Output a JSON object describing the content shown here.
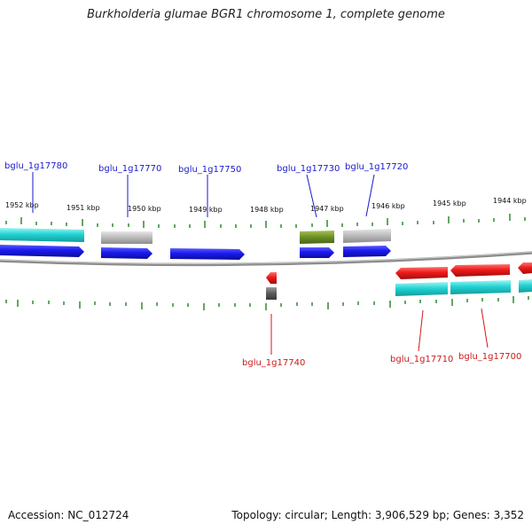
{
  "title": "Burkholderia glumae BGR1 chromosome 1, complete genome",
  "footer": {
    "accession": "Accession: NC_012724",
    "summary": "Topology: circular; Length: 3,906,529 bp; Genes: 3,352"
  },
  "colors": {
    "forward_label": "#1a1acc",
    "reverse_label": "#cc1a1a",
    "tick": "#2e8b2e",
    "backbone": "#8c8c8c",
    "cds_forward": "#1a1aee",
    "cds_reverse": "#ee1a1a",
    "cyan_track": "#22d3d3",
    "gray_track": "#b4b4b4",
    "olive_track": "#6b8e23"
  },
  "scale_labels": [
    "1952 kbp",
    "1951 kbp",
    "1950 kbp",
    "1949 kbp",
    "1948 kbp",
    "1947 kbp",
    "1946 kbp",
    "1945 kbp",
    "1944 kbp"
  ],
  "forward_genes": [
    "bglu_1g17780",
    "bglu_1g17770",
    "bglu_1g17750",
    "bglu_1g17730",
    "bglu_1g17720"
  ],
  "reverse_genes": [
    "bglu_1g17740",
    "bglu_1g17710",
    "bglu_1g17700"
  ]
}
